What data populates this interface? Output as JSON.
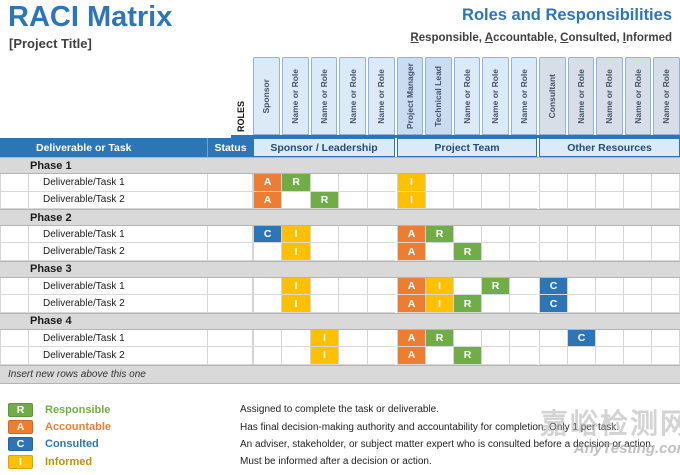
{
  "page": {
    "title": "RACI Matrix",
    "project_title": "[Project Title]",
    "heading_right": "Roles and Responsibilities",
    "legend_words": [
      "Responsible",
      "Accountable",
      "Consulted",
      "Informed"
    ]
  },
  "roles_label": "ROLES",
  "table": {
    "corner_header": "Deliverable or Task",
    "status_header": "Status",
    "groups": [
      {
        "label": "Sponsor / Leadership",
        "columns": [
          {
            "label": "Sponsor",
            "lead": false
          },
          {
            "label": "Name or Role",
            "lead": false
          },
          {
            "label": "Name or Role",
            "lead": false
          },
          {
            "label": "Name or Role",
            "lead": false
          },
          {
            "label": "Name or Role",
            "lead": false
          }
        ]
      },
      {
        "label": "Project Team",
        "columns": [
          {
            "label": "Project Manager",
            "lead": true
          },
          {
            "label": "Technical Lead",
            "lead": true
          },
          {
            "label": "Name or Role",
            "lead": false
          },
          {
            "label": "Name or Role",
            "lead": false
          },
          {
            "label": "Name or Role",
            "lead": false
          }
        ]
      },
      {
        "label": "Other Resources",
        "columns": [
          {
            "label": "Consultant",
            "lead": false
          },
          {
            "label": "Name or Role",
            "lead": false
          },
          {
            "label": "Name or Role",
            "lead": false
          },
          {
            "label": "Name or Role",
            "lead": false
          },
          {
            "label": "Name or Role",
            "lead": false
          }
        ]
      }
    ],
    "phases": [
      {
        "label": "Phase 1",
        "tasks": [
          {
            "label": "Deliverable/Task 1",
            "assignments": {
              "0": "A",
              "1": "R",
              "5": "I"
            }
          },
          {
            "label": "Deliverable/Task 2",
            "assignments": {
              "0": "A",
              "2": "R",
              "5": "I"
            }
          }
        ]
      },
      {
        "label": "Phase 2",
        "tasks": [
          {
            "label": "Deliverable/Task 1",
            "assignments": {
              "0": "C",
              "1": "I",
              "5": "A",
              "6": "R"
            }
          },
          {
            "label": "Deliverable/Task 2",
            "assignments": {
              "1": "I",
              "5": "A",
              "7": "R"
            }
          }
        ]
      },
      {
        "label": "Phase 3",
        "tasks": [
          {
            "label": "Deliverable/Task 1",
            "assignments": {
              "1": "I",
              "5": "A",
              "6": "I",
              "8": "R",
              "10": "C"
            }
          },
          {
            "label": "Deliverable/Task 2",
            "assignments": {
              "1": "I",
              "5": "A",
              "6": "I",
              "7": "R",
              "10": "C"
            }
          }
        ]
      },
      {
        "label": "Phase 4",
        "tasks": [
          {
            "label": "Deliverable/Task 1",
            "assignments": {
              "2": "I",
              "5": "A",
              "6": "R",
              "11": "C"
            }
          },
          {
            "label": "Deliverable/Task 2",
            "assignments": {
              "2": "I",
              "5": "A",
              "7": "R"
            }
          }
        ]
      }
    ],
    "footer_note": "Insert new rows above this one"
  },
  "legend": [
    {
      "letter": "R",
      "label": "Responsible",
      "description": "Assigned to complete the task or deliverable.",
      "box_color": "#70AD47",
      "text_color": "#70AD47"
    },
    {
      "letter": "A",
      "label": "Accountable",
      "description": "Has final decision-making authority and accountability for completion. Only 1 per task.",
      "box_color": "#ED7D31",
      "text_color": "#ED7D31"
    },
    {
      "letter": "C",
      "label": "Consulted",
      "description": "An adviser, stakeholder, or subject matter expert who is consulted before a decision or action.",
      "box_color": "#2E75B6",
      "text_color": "#2E75B6"
    },
    {
      "letter": "I",
      "label": "Informed",
      "description": "Must be informed after a decision or action.",
      "box_color": "#FFC000",
      "text_color": "#BF9000"
    }
  ],
  "raci_colors": {
    "R": "#70AD47",
    "A": "#ED7D31",
    "C": "#2E75B6",
    "I": "#FFC000"
  },
  "theme": {
    "accent": "#2E75B6",
    "band_light": "#DCE9F7",
    "band_lead": "#C9DCF0",
    "band_gray": "#D8DEE8",
    "phase_bg": "#D9D9D9"
  },
  "watermark": {
    "line1": "嘉峪检测网",
    "line2": "AnyTesting.com"
  }
}
